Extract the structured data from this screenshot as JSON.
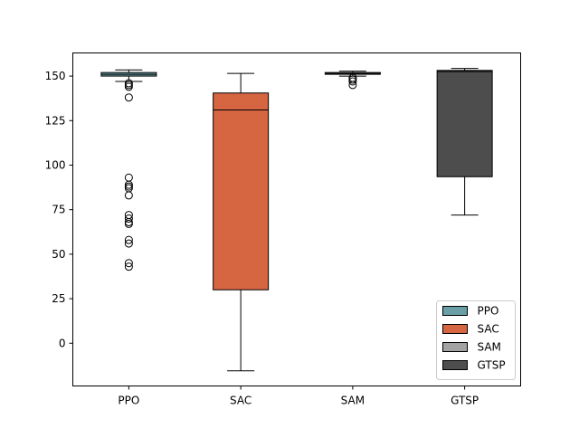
{
  "chart_data": {
    "type": "box",
    "categories": [
      "PPO",
      "SAC",
      "SAM",
      "GTSP"
    ],
    "ylim": [
      -24,
      163
    ],
    "yticks": [
      0,
      25,
      50,
      75,
      100,
      125,
      150
    ],
    "ytick_labels": [
      "0",
      "25",
      "50",
      "75",
      "100",
      "125",
      "150"
    ],
    "grid": false,
    "legend_position": "lower-right",
    "series": [
      {
        "name": "PPO",
        "color": "#6a9fa6",
        "whisker_low": 147,
        "q1": 150,
        "median": 151,
        "q3": 152,
        "whisker_high": 153.5,
        "outliers": [
          146,
          145,
          144,
          138,
          93,
          89,
          88,
          87,
          83,
          72,
          70,
          68,
          67,
          58,
          56,
          45,
          43
        ]
      },
      {
        "name": "SAC",
        "color": "#d66542",
        "whisker_low": -15.5,
        "q1": 30,
        "median": 131,
        "q3": 140.5,
        "whisker_high": 151.5,
        "outliers": []
      },
      {
        "name": "SAM",
        "color": "#a3a3a3",
        "whisker_low": 150,
        "q1": 151,
        "median": 151.5,
        "q3": 152,
        "whisker_high": 152.8,
        "outliers": [
          149,
          148,
          147,
          145
        ]
      },
      {
        "name": "GTSP",
        "color": "#4d4d4d",
        "whisker_low": 72,
        "q1": 93.5,
        "median": 152.5,
        "q3": 153.2,
        "whisker_high": 154.3,
        "outliers": []
      }
    ]
  }
}
